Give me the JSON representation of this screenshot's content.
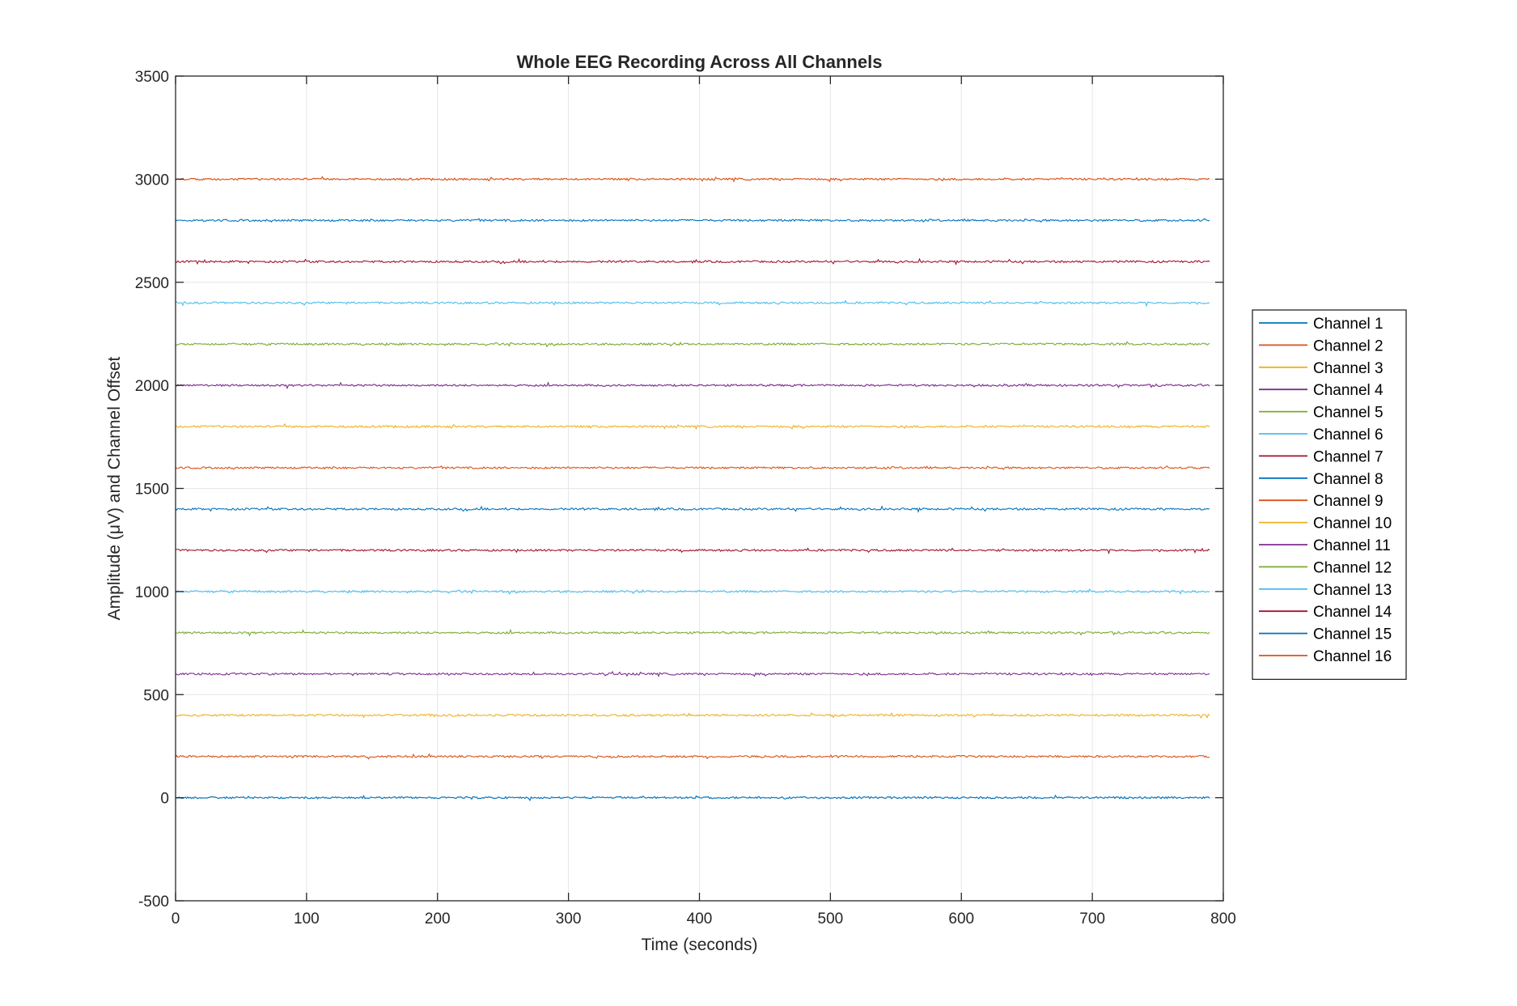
{
  "chart_data": {
    "type": "line",
    "title": "Whole EEG Recording Across All Channels",
    "xlabel": "Time (seconds)",
    "ylabel": "Amplitude (μV) and Channel Offset",
    "xlim": [
      0,
      800
    ],
    "ylim": [
      -500,
      3500
    ],
    "x_ticks": [
      0,
      100,
      200,
      300,
      400,
      500,
      600,
      700,
      800
    ],
    "y_ticks": [
      -500,
      0,
      500,
      1000,
      1500,
      2000,
      2500,
      3000,
      3500
    ],
    "grid": true,
    "legend_position": "outside-right",
    "x_range_data": [
      0,
      790
    ],
    "series": [
      {
        "name": "Channel 1",
        "offset": 0,
        "color": "#0072BD"
      },
      {
        "name": "Channel 2",
        "offset": 200,
        "color": "#D95319"
      },
      {
        "name": "Channel 3",
        "offset": 400,
        "color": "#EDB120"
      },
      {
        "name": "Channel 4",
        "offset": 600,
        "color": "#7E2F8E"
      },
      {
        "name": "Channel 5",
        "offset": 800,
        "color": "#77AC30"
      },
      {
        "name": "Channel 6",
        "offset": 1000,
        "color": "#4DBEEE"
      },
      {
        "name": "Channel 7",
        "offset": 1200,
        "color": "#A2142F"
      },
      {
        "name": "Channel 8",
        "offset": 1400,
        "color": "#0072BD"
      },
      {
        "name": "Channel 9",
        "offset": 1600,
        "color": "#D95319"
      },
      {
        "name": "Channel 10",
        "offset": 1800,
        "color": "#EDB120"
      },
      {
        "name": "Channel 11",
        "offset": 2000,
        "color": "#7E2F8E"
      },
      {
        "name": "Channel 12",
        "offset": 2200,
        "color": "#77AC30"
      },
      {
        "name": "Channel 13",
        "offset": 2400,
        "color": "#4DBEEE"
      },
      {
        "name": "Channel 14",
        "offset": 2600,
        "color": "#A2142F"
      },
      {
        "name": "Channel 15",
        "offset": 2800,
        "color": "#0072BD"
      },
      {
        "name": "Channel 16",
        "offset": 3000,
        "color": "#D95319"
      }
    ]
  }
}
